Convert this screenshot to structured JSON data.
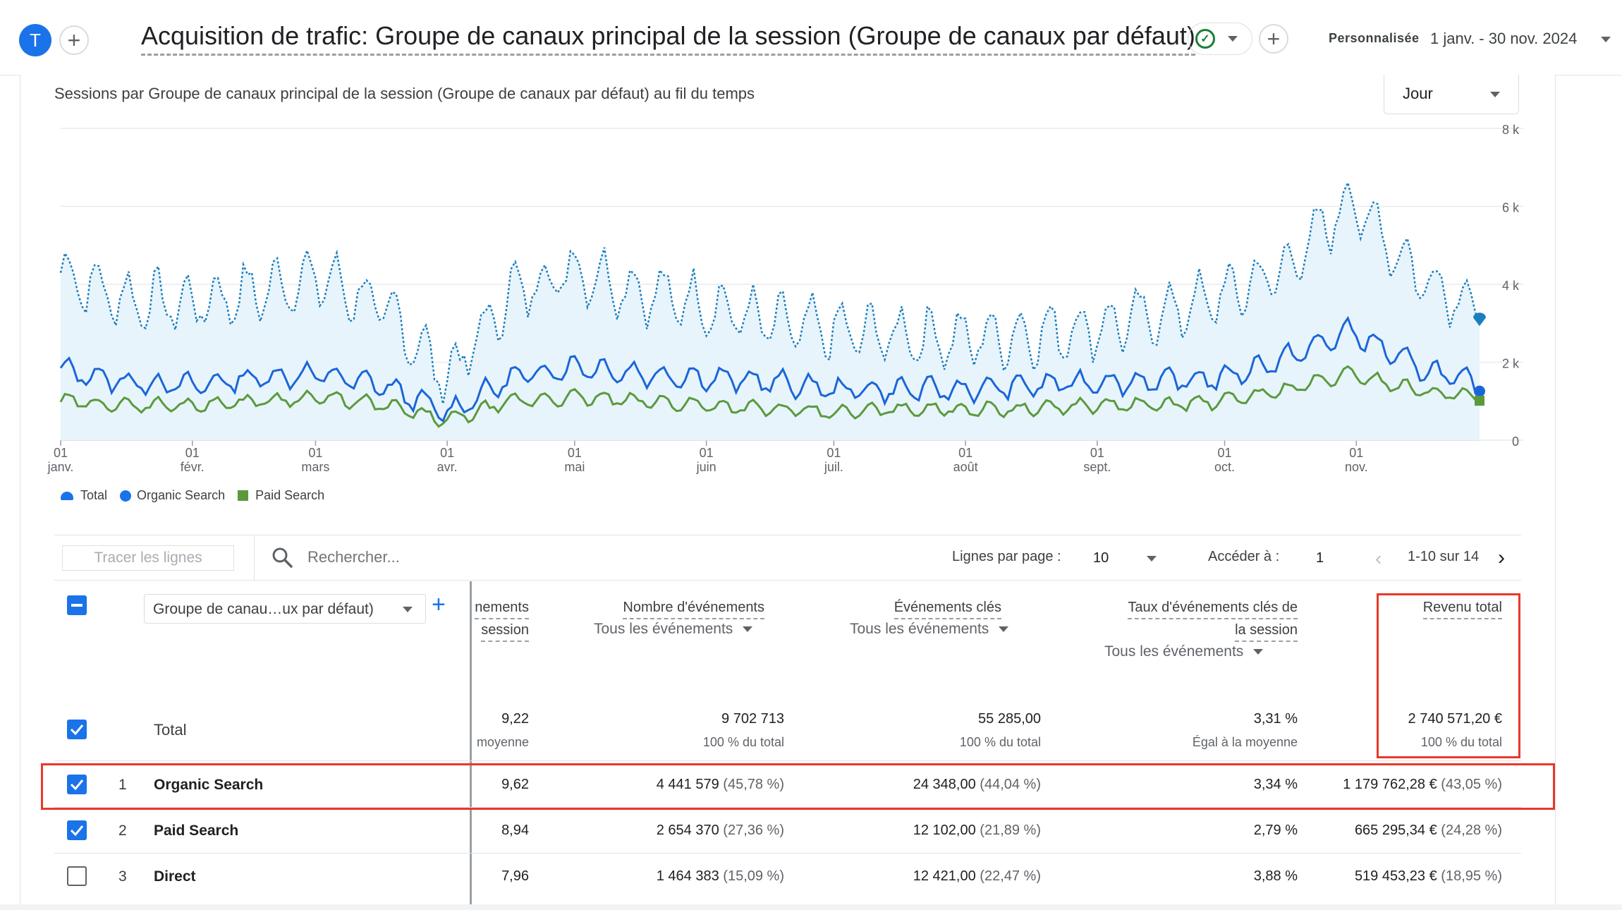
{
  "header": {
    "avatar_letter": "T",
    "add_icon": "plus-icon",
    "report_title": "Acquisition de trafic: Groupe de canaux principal de la session (Groupe de canaux par défaut)",
    "date_label": "Personnalisée",
    "date_range": "1 janv. - 30 nov. 2024"
  },
  "chart": {
    "title": "Sessions par Groupe de canaux principal de la session (Groupe de canaux par défaut) au fil du temps",
    "granularity": "Jour",
    "y_ticks": [
      "8 k",
      "6 k",
      "4 k",
      "2 k",
      "0"
    ],
    "x_ticks": [
      {
        "day": "01",
        "month": "janv."
      },
      {
        "day": "01",
        "month": "févr."
      },
      {
        "day": "01",
        "month": "mars"
      },
      {
        "day": "01",
        "month": "avr."
      },
      {
        "day": "01",
        "month": "mai"
      },
      {
        "day": "01",
        "month": "juin"
      },
      {
        "day": "01",
        "month": "juil."
      },
      {
        "day": "01",
        "month": "août"
      },
      {
        "day": "01",
        "month": "sept."
      },
      {
        "day": "01",
        "month": "oct."
      },
      {
        "day": "01",
        "month": "nov."
      }
    ],
    "legend": [
      "Total",
      "Organic Search",
      "Paid Search"
    ],
    "colors": {
      "total": "#1b7fbf",
      "organic": "#1a66d9",
      "paid": "#5a9a3d",
      "area": "#e8f4fb"
    }
  },
  "chart_data": {
    "type": "line",
    "title": "Sessions par Groupe de canaux principal de la session (Groupe de canaux par défaut) au fil du temps",
    "xlabel": "",
    "ylabel": "",
    "ylim": [
      0,
      8000
    ],
    "x_range": [
      "2024-01-01",
      "2024-11-30"
    ],
    "x": [
      "2024-01-01",
      "2024-01-16",
      "2024-02-01",
      "2024-02-16",
      "2024-03-01",
      "2024-03-16",
      "2024-04-01",
      "2024-04-16",
      "2024-05-01",
      "2024-05-16",
      "2024-06-01",
      "2024-06-16",
      "2024-07-01",
      "2024-07-16",
      "2024-08-01",
      "2024-08-16",
      "2024-09-01",
      "2024-09-16",
      "2024-10-01",
      "2024-10-16",
      "2024-11-01",
      "2024-11-16",
      "2024-11-30"
    ],
    "series": [
      {
        "name": "Total",
        "values": [
          4300,
          3600,
          3500,
          3800,
          4200,
          3400,
          1600,
          3800,
          4400,
          3800,
          3500,
          3000,
          2800,
          2700,
          2600,
          2700,
          2900,
          3200,
          3700,
          4400,
          6200,
          4300,
          3400
        ]
      },
      {
        "name": "Organic Search",
        "values": [
          1800,
          1500,
          1400,
          1600,
          1700,
          1400,
          700,
          1600,
          1900,
          1700,
          1600,
          1500,
          1300,
          1300,
          1300,
          1400,
          1500,
          1500,
          1600,
          2100,
          2800,
          1900,
          1400
        ]
      },
      {
        "name": "Paid Search",
        "values": [
          1000,
          900,
          900,
          1000,
          1100,
          900,
          500,
          1000,
          1100,
          1000,
          900,
          800,
          700,
          800,
          800,
          800,
          900,
          900,
          1000,
          1300,
          1700,
          1300,
          1100
        ]
      }
    ],
    "legend_position": "bottom-left",
    "grid": true
  },
  "toolbar": {
    "plot_rows": "Tracer les lignes",
    "search_placeholder": "Rechercher...",
    "rows_per_page_label": "Lignes par page :",
    "rows_per_page": "10",
    "goto_label": "Accéder à :",
    "goto_value": "1",
    "pagination": "1-10 sur 14"
  },
  "table": {
    "dimension": "Groupe de canau…ux par défaut)",
    "columns": {
      "c1": {
        "line1": "nements",
        "line2": "session"
      },
      "c2": {
        "title": "Nombre d'événements",
        "sub": "Tous les événements"
      },
      "c3": {
        "title": "Événements clés",
        "sub": "Tous les événements"
      },
      "c4": {
        "line1": "Taux d'événements clés de",
        "line2": "la session",
        "sub": "Tous les événements"
      },
      "c5": {
        "title": "Revenu total"
      }
    },
    "total": {
      "label": "Total",
      "c1": "9,22",
      "c1_note": "moyenne",
      "c2": "9 702 713",
      "c2_note": "100 % du total",
      "c3": "55 285,00",
      "c3_note": "100 % du total",
      "c4": "3,31 %",
      "c4_note": "Égal à la moyenne",
      "c5": "2 740 571,20 €",
      "c5_note": "100 % du total"
    },
    "rows": [
      {
        "num": "1",
        "name": "Organic Search",
        "c1": "9,62",
        "c2": "4 441 579",
        "c2p": "(45,78 %)",
        "c3": "24 348,00",
        "c3p": "(44,04 %)",
        "c4": "3,34 %",
        "c5": "1 179 762,28 €",
        "c5p": "(43,05 %)"
      },
      {
        "num": "2",
        "name": "Paid Search",
        "c1": "8,94",
        "c2": "2 654 370",
        "c2p": "(27,36 %)",
        "c3": "12 102,00",
        "c3p": "(21,89 %)",
        "c4": "2,79 %",
        "c5": "665 295,34 €",
        "c5p": "(24,28 %)"
      },
      {
        "num": "3",
        "name": "Direct",
        "c1": "7,96",
        "c2": "1 464 383",
        "c2p": "(15,09 %)",
        "c3": "12 421,00",
        "c3p": "(22,47 %)",
        "c4": "3,88 %",
        "c5": "519 453,23 €",
        "c5p": "(18,95 %)"
      }
    ]
  }
}
